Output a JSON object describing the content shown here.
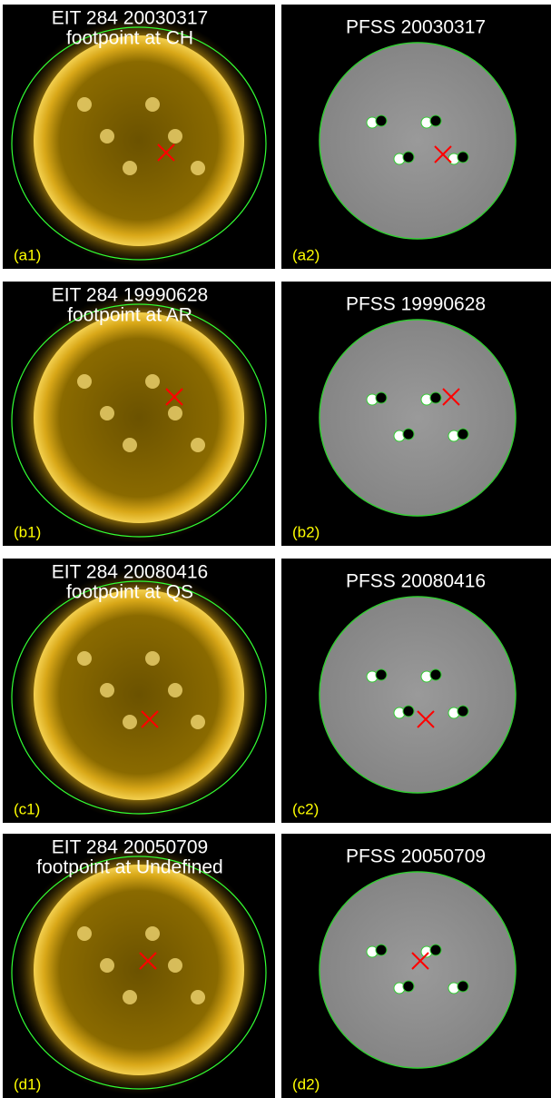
{
  "panels": [
    {
      "title": [
        "EIT 284 20030317",
        "footpoint at CH"
      ],
      "label": "(a1)"
    },
    {
      "title": [
        "PFSS 20030317"
      ],
      "label": "(a2)"
    },
    {
      "title": [
        "EIT 284 19990628",
        "footpoint at AR"
      ],
      "label": "(b1)"
    },
    {
      "title": [
        "PFSS 19990628"
      ],
      "label": "(b2)"
    },
    {
      "title": [
        "EIT 284 20080416",
        "footpoint at QS"
      ],
      "label": "(c1)"
    },
    {
      "title": [
        "PFSS 20080416"
      ],
      "label": "(c2)"
    },
    {
      "title": [
        "EIT 284 20050709",
        "footpoint at Undefined"
      ],
      "label": "(d1)"
    },
    {
      "title": [
        "PFSS 20050709"
      ],
      "label": "(d2)"
    }
  ]
}
